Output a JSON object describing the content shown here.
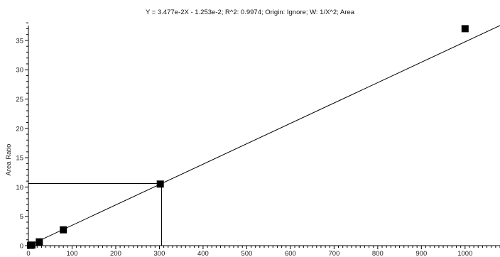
{
  "chart_data": {
    "type": "scatter",
    "title": "Y = 3.477e-2X - 1.253e-2; R^2: 0.9974; Origin: Ignore; W: 1/X^2; Area",
    "xlabel": "",
    "ylabel": "Area Ratio",
    "xlim": [
      0,
      1080
    ],
    "ylim": [
      0,
      38.5
    ],
    "x_ticks": [
      0,
      100,
      200,
      300,
      400,
      500,
      600,
      700,
      800,
      900,
      1000
    ],
    "y_ticks": [
      0,
      5,
      10,
      15,
      20,
      25,
      30,
      35
    ],
    "grid": false,
    "points": [
      {
        "x": 5,
        "y": 0.05
      },
      {
        "x": 8,
        "y": 0.1
      },
      {
        "x": 25,
        "y": 0.65
      },
      {
        "x": 80,
        "y": 2.7
      },
      {
        "x": 302,
        "y": 10.5
      },
      {
        "x": 1000,
        "y": 37.0
      }
    ],
    "fit_line": {
      "slope": 0.03477,
      "intercept": -0.01253
    },
    "marker_point": {
      "x": 305,
      "y": 10.6
    },
    "colors": {
      "marker": "#000000",
      "line": "#000000",
      "axis": "#000000"
    }
  }
}
